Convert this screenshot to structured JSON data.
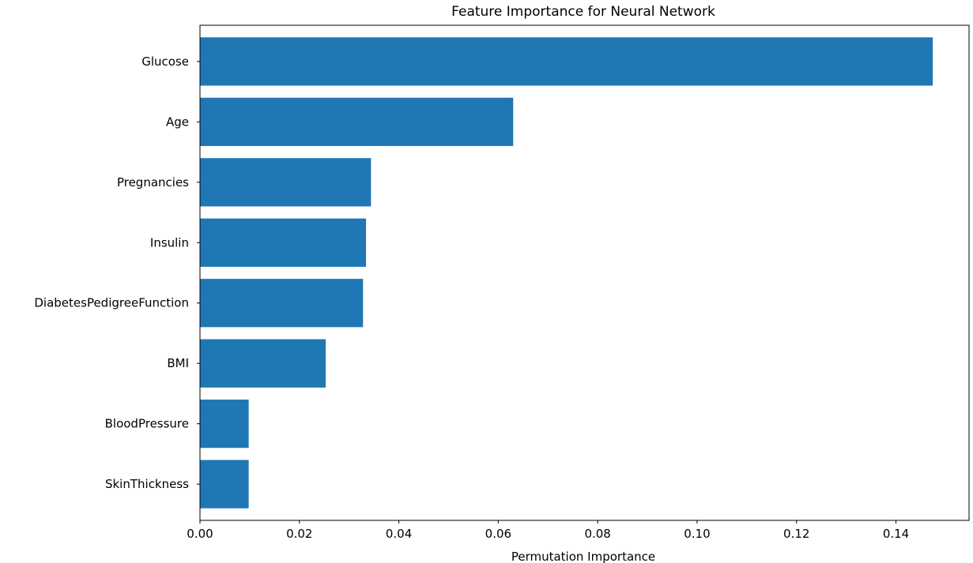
{
  "chart_data": {
    "type": "bar",
    "orientation": "horizontal",
    "title": "Feature Importance for Neural Network",
    "xlabel": "Permutation Importance",
    "ylabel": "",
    "categories": [
      "Glucose",
      "Age",
      "Pregnancies",
      "Insulin",
      "DiabetesPedigreeFunction",
      "BMI",
      "BloodPressure",
      "SkinThickness"
    ],
    "values": [
      0.1474,
      0.063,
      0.0344,
      0.0334,
      0.0328,
      0.0253,
      0.0098,
      0.0098
    ],
    "xlim": [
      0,
      0.1547
    ],
    "xticks": [
      0.0,
      0.02,
      0.04,
      0.06,
      0.08,
      0.1,
      0.12,
      0.14
    ],
    "xtick_labels": [
      "0.00",
      "0.02",
      "0.04",
      "0.06",
      "0.08",
      "0.10",
      "0.12",
      "0.14"
    ],
    "grid": false,
    "legend": "none",
    "bar_color": "#1f77b4"
  }
}
